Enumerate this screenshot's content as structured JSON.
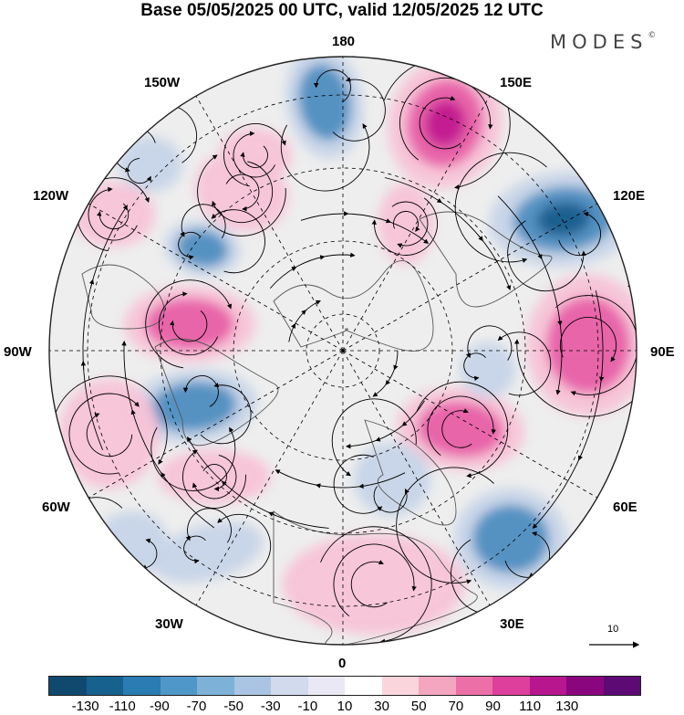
{
  "title": "Base 05/05/2025 00 UTC, valid 12/05/2025 12 UTC",
  "brand": {
    "name": "MODES",
    "mark": "©"
  },
  "map": {
    "projection": "north-polar-stereographic",
    "longitude_labels": [
      "180",
      "150E",
      "120E",
      "90E",
      "60E",
      "30E",
      "0",
      "30W",
      "60W",
      "90W",
      "120W",
      "150W"
    ],
    "reference_vector": {
      "label": "10"
    },
    "field_colors": {
      "positive_strong": "#c2178f",
      "positive_mid": "#e860a8",
      "positive_light": "#f7c3d6",
      "negative_strong": "#1c5e8d",
      "negative_mid": "#4f8fc0",
      "negative_light": "#c6d4e8",
      "neutral": "#eeeeee",
      "land_outline": "#555555",
      "graticule": "#000000",
      "streamline": "#000000"
    }
  },
  "colorbar": {
    "tick_labels": [
      "-130",
      "-110",
      "-90",
      "-70",
      "-50",
      "-30",
      "-10",
      "10",
      "30",
      "50",
      "70",
      "90",
      "110",
      "130"
    ],
    "colors": [
      "#0f4a6e",
      "#16618e",
      "#2a7cb2",
      "#4f97c8",
      "#7eb1d8",
      "#a9c5e3",
      "#d1dbed",
      "#eae8f4",
      "#ffffff",
      "#fad6dc",
      "#f4a6c0",
      "#ec6fa8",
      "#de3f9c",
      "#b7168f",
      "#8a067f",
      "#5e0a75"
    ]
  }
}
